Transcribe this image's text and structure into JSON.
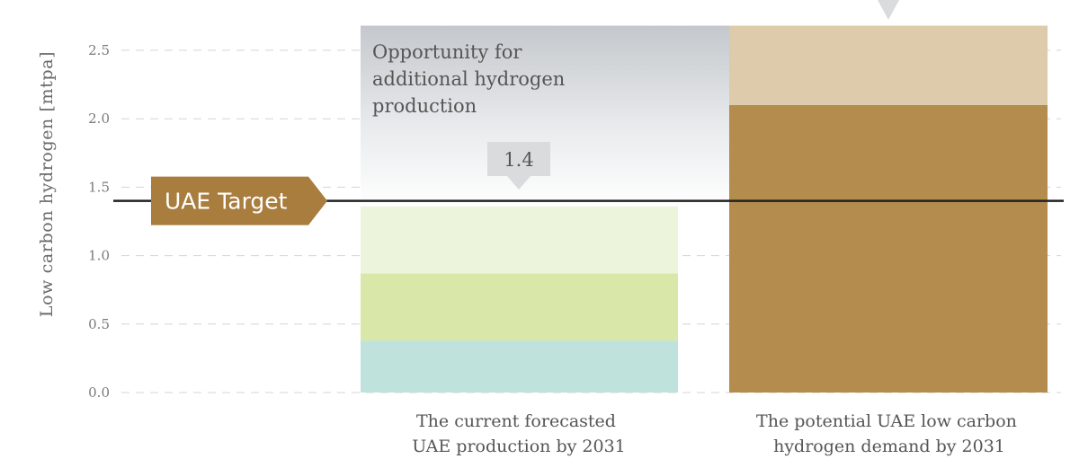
{
  "chart_data": {
    "type": "bar",
    "ylabel": "Low carbon hydrogen [mtpa]",
    "ylim": [
      0,
      2.7
    ],
    "yticks": [
      "0.0",
      "0.5",
      "1.0",
      "1.5",
      "2.0",
      "2.5"
    ],
    "grid": true,
    "categories": [
      [
        "The current forecasted",
        "UAE production by 2031"
      ],
      [
        "The potential UAE low carbon",
        "hydrogen demand by 2031"
      ]
    ],
    "stacks": [
      {
        "segments": [
          {
            "value": 0.38,
            "color": "#bfe3dc"
          },
          {
            "value": 0.49,
            "color": "#d9e8a9"
          },
          {
            "value": 0.49,
            "color": "#ecf4dc"
          }
        ]
      },
      {
        "segments": [
          {
            "value": 2.1,
            "color": "#b48c4d"
          },
          {
            "value": 0.58,
            "color": "#ddcbab"
          }
        ]
      }
    ],
    "opportunity_label": [
      "Opportunity for",
      "additional hydrogen",
      "production"
    ],
    "callout": {
      "label": "1.4",
      "value": 1.4
    },
    "target": {
      "label": "UAE Target",
      "value": 1.4,
      "color": "#a87d3e"
    }
  }
}
